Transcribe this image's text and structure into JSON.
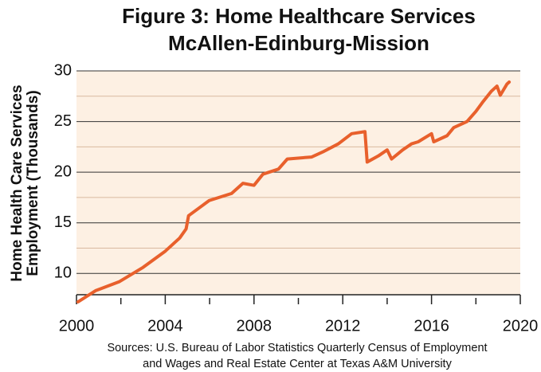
{
  "chart_data": {
    "type": "line",
    "title": [
      "Figure 3: Home Healthcare Services",
      "McAllen-Edinburg-Mission"
    ],
    "y_label": [
      "Home Health Care Services",
      "Employment (Thousands)"
    ],
    "source": [
      "Sources: U.S. Bureau of Labor Statistics Quarterly Census of Employment",
      "and Wages and Real Estate Center at Texas A&M University"
    ],
    "x": [
      2000.07,
      2000.86,
      2001.94,
      2003.0,
      2004.0,
      2004.65,
      2004.94,
      2005.05,
      2005.98,
      2006.99,
      2007.5,
      2008.0,
      2008.4,
      2009.1,
      2009.5,
      2010.6,
      2011.1,
      2011.8,
      2012.4,
      2013.0,
      2013.1,
      2013.6,
      2014.0,
      2014.2,
      2014.7,
      2015.1,
      2015.4,
      2016.0,
      2016.1,
      2016.7,
      2017.0,
      2017.6,
      2018.0,
      2018.3,
      2018.7,
      2018.95,
      2019.1,
      2019.4,
      2019.5
    ],
    "series": [
      {
        "color": "#e8602c",
        "values": [
          7.2,
          8.3,
          9.2,
          10.6,
          12.2,
          13.5,
          14.4,
          15.7,
          17.2,
          17.9,
          18.9,
          18.7,
          19.8,
          20.3,
          21.3,
          21.5,
          22.0,
          22.8,
          23.8,
          24.0,
          21.0,
          21.6,
          22.2,
          21.3,
          22.2,
          22.8,
          23.0,
          23.8,
          23.0,
          23.6,
          24.4,
          25.0,
          26.0,
          26.9,
          28.0,
          28.5,
          27.6,
          28.7,
          28.9
        ]
      }
    ],
    "xlim": [
      2000,
      2020
    ],
    "xticks": [
      2000,
      2004,
      2008,
      2012,
      2016,
      2020
    ],
    "minor_xticks": [
      2002,
      2006,
      2010,
      2014,
      2018
    ],
    "ylim": [
      7.9,
      30
    ],
    "yticks": [
      10,
      15,
      20,
      25,
      30
    ],
    "minor_yticks": [
      12.5,
      17.5,
      22.5,
      27.5
    ],
    "grid": true,
    "plot_background": "#fdf0e3"
  }
}
